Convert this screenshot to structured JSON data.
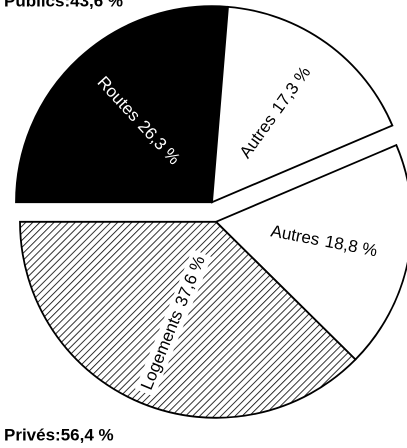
{
  "chart_data": {
    "type": "pie",
    "categories": [
      "Routes",
      "Autres",
      "Autres",
      "Logements"
    ],
    "values": [
      26.3,
      17.3,
      18.8,
      37.6
    ],
    "value_labels": [
      "26,3 %",
      "17,3 %",
      "18,8 %",
      "37,6 %"
    ],
    "colors": [
      "#000000",
      "#ffffff",
      "#ffffff",
      "hatch"
    ],
    "groups": [
      {
        "label": "Publics:43,6 %",
        "value": 43.6,
        "members": [
          0,
          1
        ]
      },
      {
        "label": "Privés:56,4 %",
        "value": 56.4,
        "members": [
          2,
          3
        ]
      }
    ]
  }
}
